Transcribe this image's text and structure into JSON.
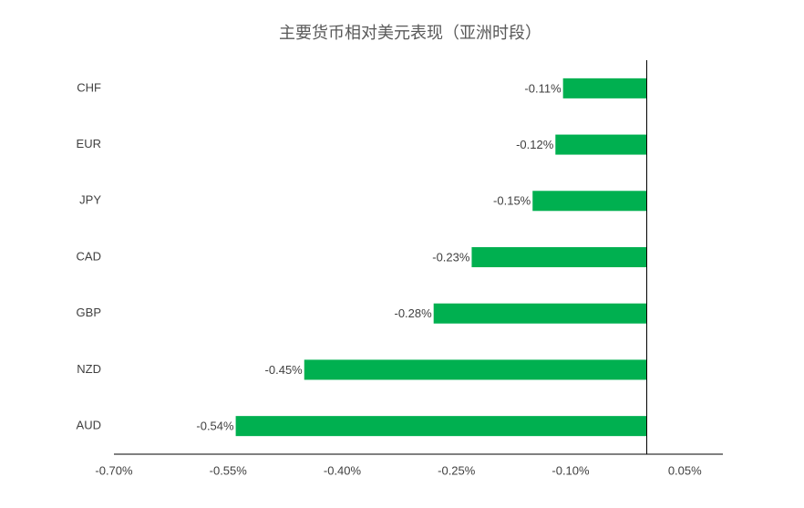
{
  "chart_data": {
    "type": "bar",
    "orientation": "horizontal",
    "title": "主要货币相对美元表现（亚洲时段）",
    "categories": [
      "CHF",
      "EUR",
      "JPY",
      "CAD",
      "GBP",
      "NZD",
      "AUD"
    ],
    "values": [
      -0.11,
      -0.12,
      -0.15,
      -0.23,
      -0.28,
      -0.45,
      -0.54
    ],
    "value_labels": [
      "-0.11%",
      "-0.12%",
      "-0.15%",
      "-0.23%",
      "-0.28%",
      "-0.45%",
      "-0.54%"
    ],
    "color": "#00b050",
    "xlim": [
      -0.7,
      0.1
    ],
    "xticks": [
      {
        "value": -0.7,
        "label": "-0.70%"
      },
      {
        "value": -0.55,
        "label": "-0.55%"
      },
      {
        "value": -0.4,
        "label": "-0.40%"
      },
      {
        "value": -0.25,
        "label": "-0.25%"
      },
      {
        "value": -0.1,
        "label": "-0.10%"
      },
      {
        "value": 0.05,
        "label": "0.05%"
      }
    ],
    "grid": false
  }
}
